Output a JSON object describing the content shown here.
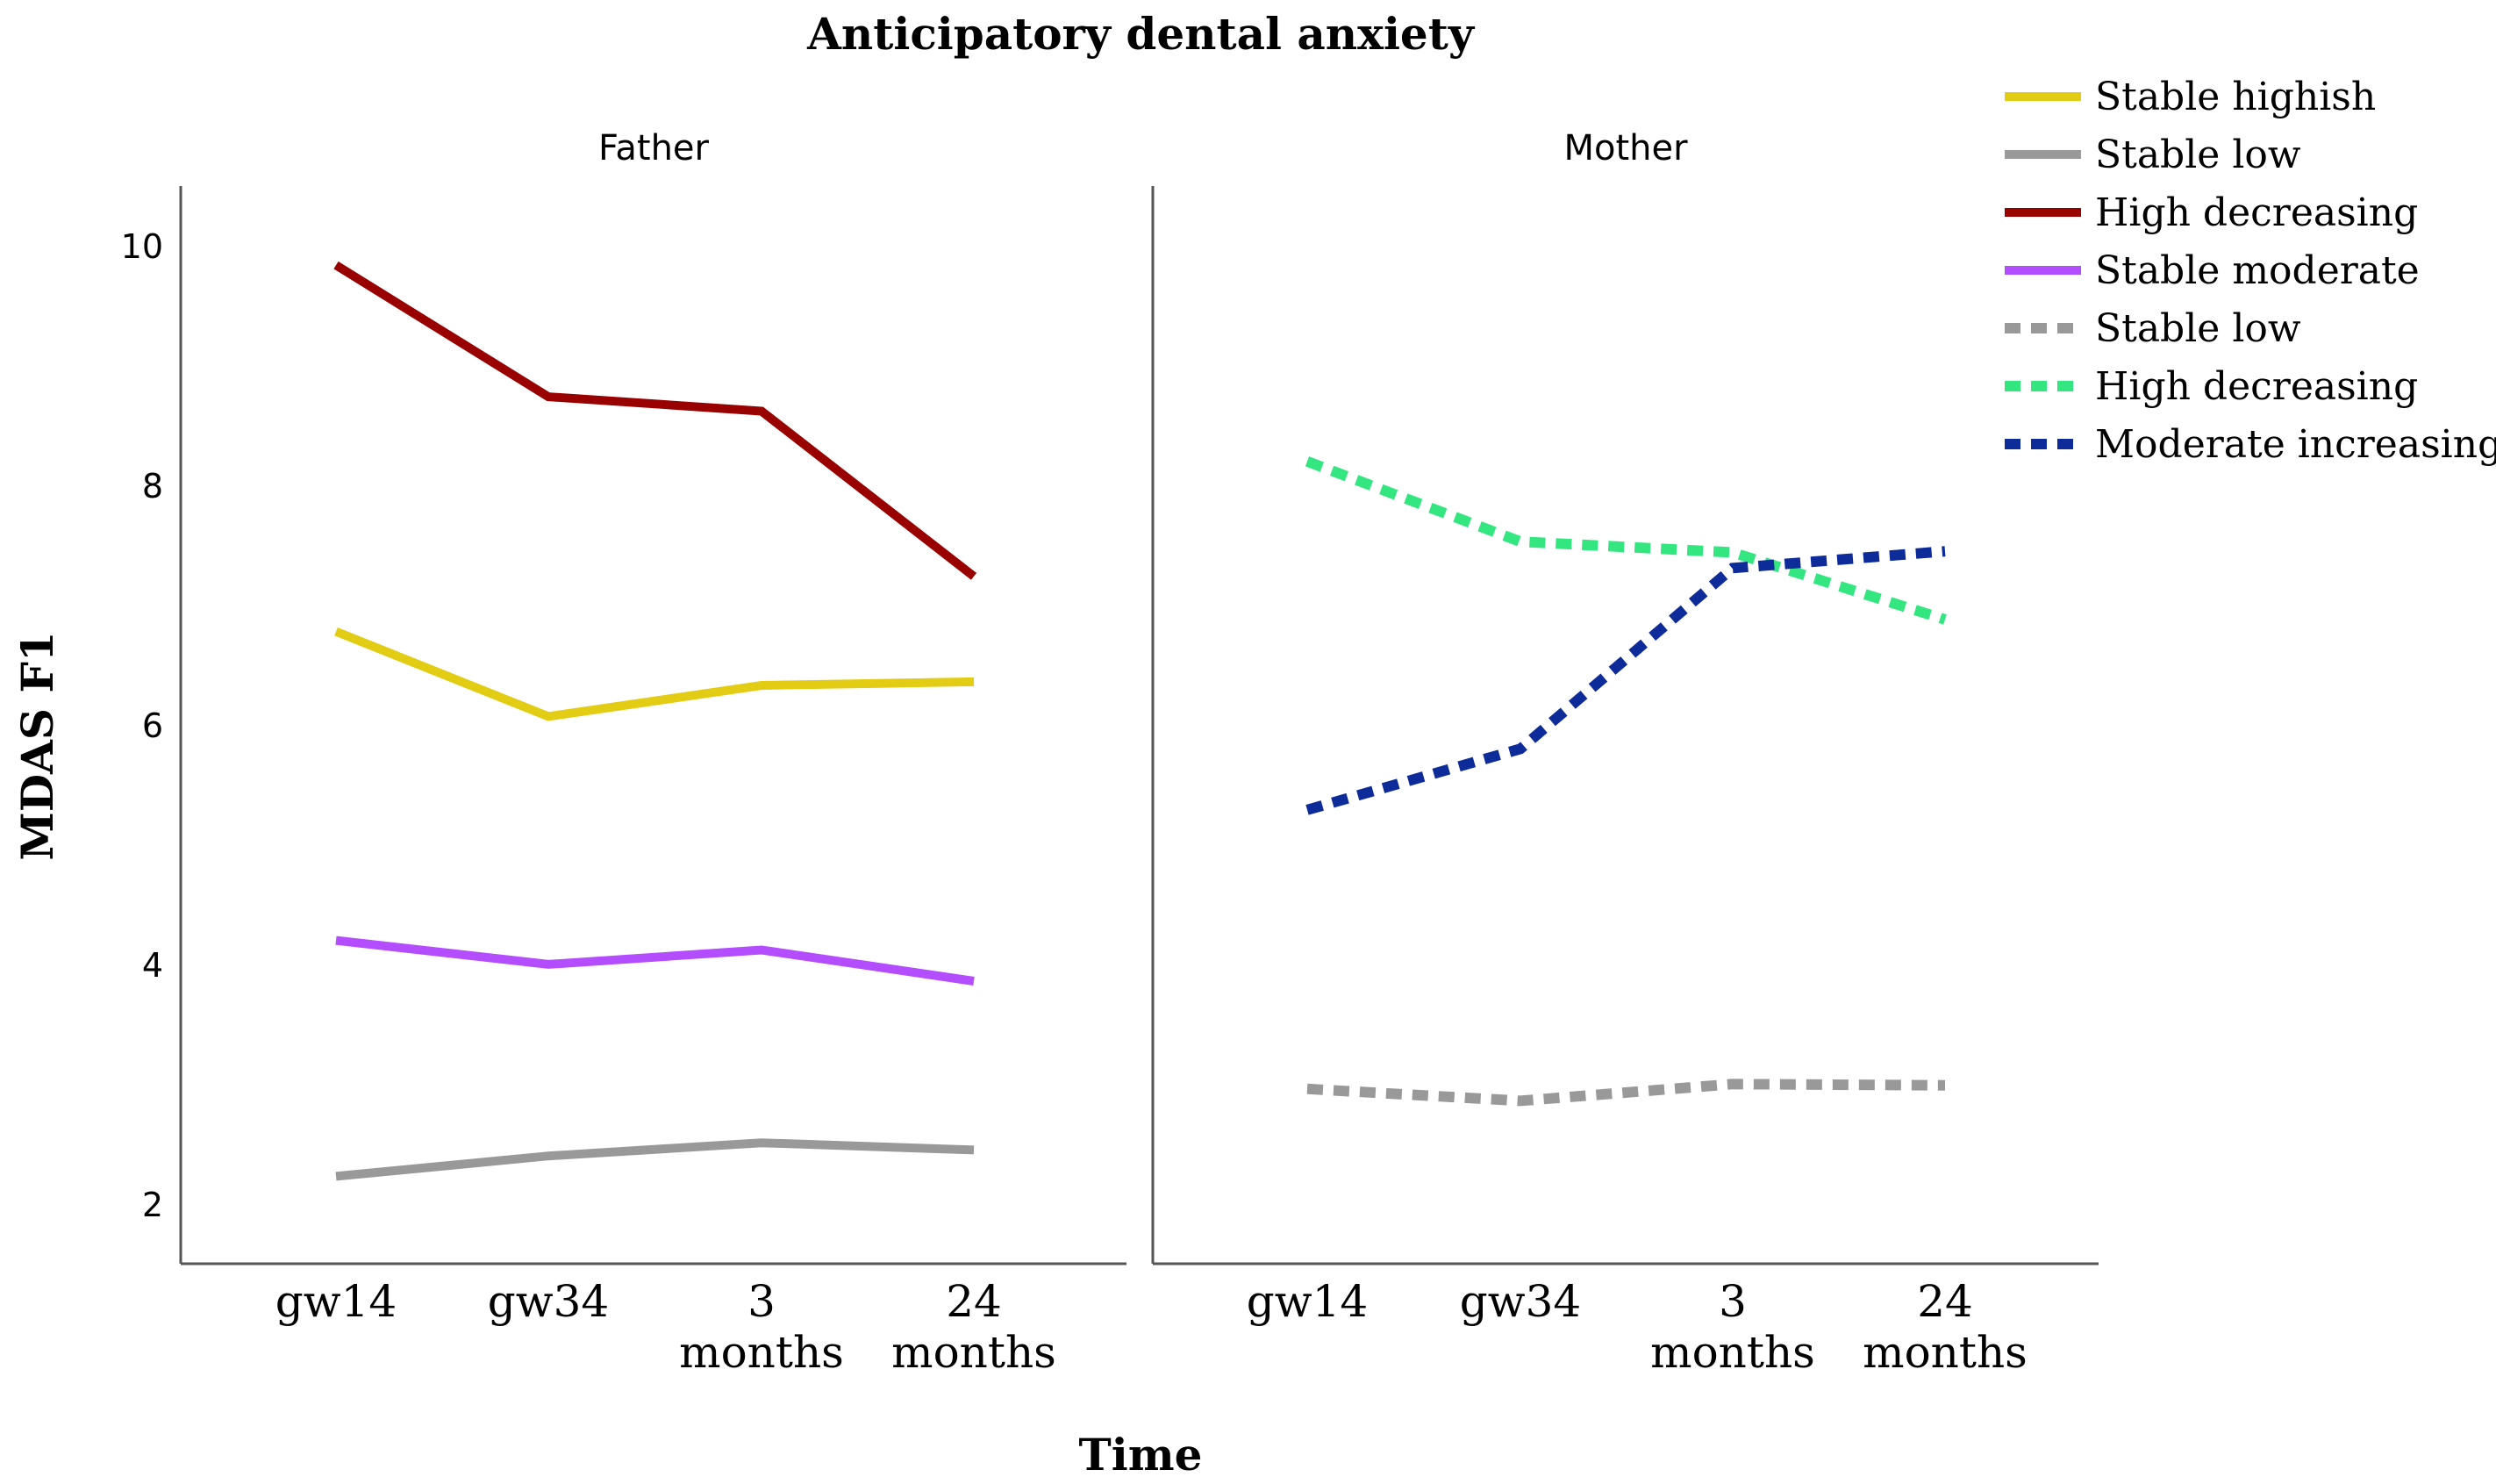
{
  "chart_data": {
    "type": "line",
    "title": "Anticipatory dental anxiety",
    "xlabel": "Time",
    "ylabel": "MDAS F1",
    "categories": [
      [
        "gw14"
      ],
      [
        "gw34"
      ],
      [
        "3",
        "months"
      ],
      [
        "24",
        "months"
      ]
    ],
    "ylim": [
      1.5,
      10.5
    ],
    "yticks": [
      2,
      4,
      6,
      8,
      10
    ],
    "grid": false,
    "legend_position": "top-right",
    "panels": [
      {
        "name": "Father",
        "series": [
          {
            "name": "Stable highish",
            "color": "#e3cc14",
            "dashed": false,
            "values": [
              6.78,
              6.07,
              6.33,
              6.36
            ]
          },
          {
            "name": "Stable low",
            "color": "#999999",
            "dashed": false,
            "values": [
              2.23,
              2.4,
              2.51,
              2.45
            ]
          },
          {
            "name": "High decreasing",
            "color": "#990000",
            "dashed": false,
            "values": [
              9.84,
              8.74,
              8.62,
              7.24
            ]
          },
          {
            "name": "Stable moderate",
            "color": "#b34dff",
            "dashed": false,
            "values": [
              4.2,
              4.0,
              4.12,
              3.86
            ]
          }
        ]
      },
      {
        "name": "Mother",
        "series": [
          {
            "name": "Stable low",
            "color": "#999999",
            "dashed": true,
            "values": [
              2.96,
              2.86,
              3.0,
              2.99
            ]
          },
          {
            "name": "High decreasing",
            "color": "#33e680",
            "dashed": true,
            "values": [
              8.2,
              7.53,
              7.44,
              6.88
            ]
          },
          {
            "name": "Moderate increasing",
            "color": "#0d2b99",
            "dashed": true,
            "values": [
              5.29,
              5.8,
              7.31,
              7.45
            ]
          }
        ]
      }
    ],
    "legend": [
      {
        "name": "Stable highish",
        "color": "#e3cc14",
        "dashed": false
      },
      {
        "name": "Stable low",
        "color": "#999999",
        "dashed": false
      },
      {
        "name": "High decreasing",
        "color": "#990000",
        "dashed": false
      },
      {
        "name": "Stable moderate",
        "color": "#b34dff",
        "dashed": false
      },
      {
        "name": "Stable low",
        "color": "#999999",
        "dashed": true
      },
      {
        "name": "High decreasing",
        "color": "#33e680",
        "dashed": true
      },
      {
        "name": "Moderate increasing",
        "color": "#0d2b99",
        "dashed": true
      }
    ]
  }
}
